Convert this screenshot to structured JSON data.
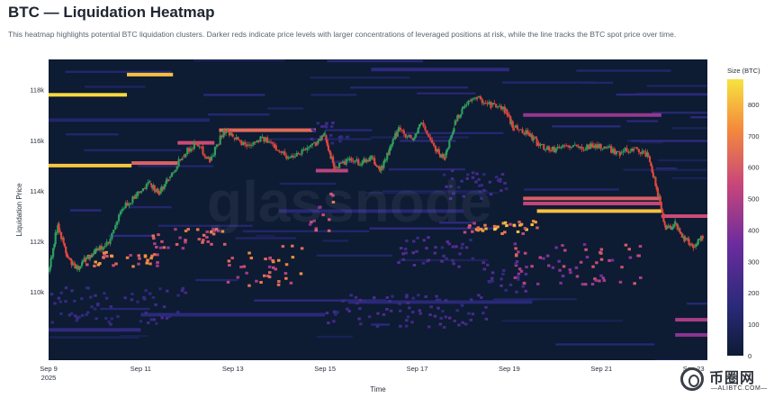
{
  "header": {
    "title": "BTC — Liquidation Heatmap",
    "subtitle": "This heatmap highlights potential BTC liquidation clusters. Darker reds indicate price levels with larger concentrations of leveraged positions at risk, while the line tracks the BTC spot price over time."
  },
  "watermark": "glassnode",
  "logo": {
    "cn": "币圈网",
    "en": "—ALIBTC.COM—"
  },
  "colors": {
    "background": "#0d1b33",
    "candle_up": "#2f9e5c",
    "candle_down": "#e0463c",
    "scale_low": "#0d1b33",
    "scale_mid": "#7b2fa3",
    "scale_high": "#f7e340"
  },
  "chart_data": {
    "type": "heatmap",
    "title": "BTC — Liquidation Heatmap",
    "xlabel": "Time",
    "ylabel": "Liquidation Price",
    "x_ticks": [
      "Sep 9\n2025",
      "Sep 11",
      "Sep 13",
      "Sep 15",
      "Sep 17",
      "Sep 19",
      "Sep 21",
      "Sep 23"
    ],
    "x_range": [
      9,
      23.3
    ],
    "y_ticks": [
      "118k",
      "116k",
      "114k",
      "112k",
      "110k"
    ],
    "y_tick_values": [
      118000,
      116000,
      114000,
      112000,
      110000
    ],
    "ylim": [
      107300,
      119200
    ],
    "colorbar": {
      "label": "Size (BTC)",
      "ticks": [
        0,
        100,
        200,
        300,
        400,
        500,
        600,
        700,
        800
      ],
      "range": [
        0,
        880
      ]
    },
    "price_line": {
      "name": "BTC spot",
      "points": [
        [
          9.0,
          110800
        ],
        [
          9.2,
          112700
        ],
        [
          9.4,
          111400
        ],
        [
          9.6,
          110900
        ],
        [
          9.8,
          111300
        ],
        [
          10.0,
          111600
        ],
        [
          10.3,
          111900
        ],
        [
          10.6,
          113300
        ],
        [
          10.9,
          113800
        ],
        [
          11.2,
          114300
        ],
        [
          11.4,
          113900
        ],
        [
          11.6,
          114500
        ],
        [
          11.9,
          115400
        ],
        [
          12.2,
          115900
        ],
        [
          12.5,
          115200
        ],
        [
          12.8,
          116400
        ],
        [
          13.0,
          116100
        ],
        [
          13.3,
          115800
        ],
        [
          13.6,
          116100
        ],
        [
          13.9,
          115800
        ],
        [
          14.2,
          115300
        ],
        [
          14.5,
          115600
        ],
        [
          14.8,
          115900
        ],
        [
          15.0,
          116200
        ],
        [
          15.2,
          114900
        ],
        [
          15.5,
          115200
        ],
        [
          15.8,
          115100
        ],
        [
          16.0,
          115300
        ],
        [
          16.2,
          114800
        ],
        [
          16.4,
          115600
        ],
        [
          16.6,
          116500
        ],
        [
          16.9,
          116000
        ],
        [
          17.1,
          116700
        ],
        [
          17.4,
          115600
        ],
        [
          17.6,
          115300
        ],
        [
          17.8,
          116600
        ],
        [
          18.0,
          117300
        ],
        [
          18.3,
          117700
        ],
        [
          18.6,
          117400
        ],
        [
          18.9,
          117200
        ],
        [
          19.1,
          116500
        ],
        [
          19.4,
          116300
        ],
        [
          19.6,
          115900
        ],
        [
          19.9,
          115600
        ],
        [
          20.2,
          115800
        ],
        [
          20.5,
          115700
        ],
        [
          20.8,
          115800
        ],
        [
          21.1,
          115700
        ],
        [
          21.4,
          115500
        ],
        [
          21.7,
          115700
        ],
        [
          22.0,
          115400
        ],
        [
          22.2,
          114100
        ],
        [
          22.4,
          112500
        ],
        [
          22.6,
          112700
        ],
        [
          22.8,
          112100
        ],
        [
          23.0,
          111800
        ],
        [
          23.2,
          112200
        ]
      ]
    },
    "clusters": [
      {
        "t0": 9.0,
        "t1": 10.7,
        "price": 117800,
        "size": 860
      },
      {
        "t0": 10.7,
        "t1": 11.7,
        "price": 118600,
        "size": 820
      },
      {
        "t0": 9.0,
        "t1": 10.8,
        "price": 115000,
        "size": 830
      },
      {
        "t0": 10.8,
        "t1": 11.8,
        "price": 115100,
        "size": 620
      },
      {
        "t0": 11.8,
        "t1": 12.6,
        "price": 115900,
        "size": 560
      },
      {
        "t0": 12.7,
        "t1": 14.8,
        "price": 116400,
        "size": 640
      },
      {
        "t0": 14.8,
        "t1": 15.5,
        "price": 114800,
        "size": 520
      },
      {
        "t0": 19.3,
        "t1": 22.3,
        "price": 117000,
        "size": 440
      },
      {
        "t0": 19.3,
        "t1": 22.3,
        "price": 113700,
        "size": 610
      },
      {
        "t0": 19.3,
        "t1": 22.3,
        "price": 113500,
        "size": 540
      },
      {
        "t0": 19.6,
        "t1": 22.3,
        "price": 113200,
        "size": 820
      },
      {
        "t0": 22.3,
        "t1": 23.3,
        "price": 113000,
        "size": 560
      },
      {
        "t0": 22.6,
        "t1": 23.3,
        "price": 108900,
        "size": 480
      },
      {
        "t0": 22.6,
        "t1": 23.3,
        "price": 108300,
        "size": 420
      },
      {
        "t0": 9.0,
        "t1": 11.0,
        "price": 108500,
        "size": 180
      },
      {
        "t0": 11.0,
        "t1": 15.0,
        "price": 109100,
        "size": 160
      },
      {
        "t0": 15.5,
        "t1": 19.5,
        "price": 109600,
        "size": 150
      },
      {
        "t0": 9.0,
        "t1": 12.5,
        "price": 116800,
        "size": 120
      },
      {
        "t0": 16.0,
        "t1": 19.0,
        "price": 118800,
        "size": 170
      },
      {
        "t0": 14.0,
        "t1": 18.0,
        "price": 113200,
        "size": 140
      }
    ],
    "scatter_clusters": [
      {
        "t0": 9.8,
        "t1": 11.4,
        "p0": 111000,
        "p1": 111600,
        "size": 640
      },
      {
        "t0": 11.2,
        "t1": 12.8,
        "p0": 111700,
        "p1": 112600,
        "size": 600
      },
      {
        "t0": 12.8,
        "t1": 14.5,
        "p0": 110200,
        "p1": 112000,
        "size": 620
      },
      {
        "t0": 14.6,
        "t1": 15.2,
        "p0": 112400,
        "p1": 113900,
        "size": 560
      },
      {
        "t0": 18.0,
        "t1": 19.6,
        "p0": 112300,
        "p1": 112800,
        "size": 720
      },
      {
        "t0": 19.0,
        "t1": 21.9,
        "p0": 110300,
        "p1": 112000,
        "size": 520
      },
      {
        "t0": 16.5,
        "t1": 18.2,
        "p0": 111000,
        "p1": 112200,
        "size": 260
      },
      {
        "t0": 15.0,
        "t1": 18.5,
        "p0": 108600,
        "p1": 109900,
        "size": 230
      },
      {
        "t0": 18.4,
        "t1": 19.4,
        "p0": 110000,
        "p1": 111200,
        "size": 260
      },
      {
        "t0": 9.0,
        "t1": 12.0,
        "p0": 108700,
        "p1": 110200,
        "size": 200
      },
      {
        "t0": 14.5,
        "t1": 15.5,
        "p0": 115800,
        "p1": 116700,
        "size": 210
      },
      {
        "t0": 17.5,
        "t1": 19.0,
        "p0": 113600,
        "p1": 114800,
        "size": 220
      }
    ]
  }
}
